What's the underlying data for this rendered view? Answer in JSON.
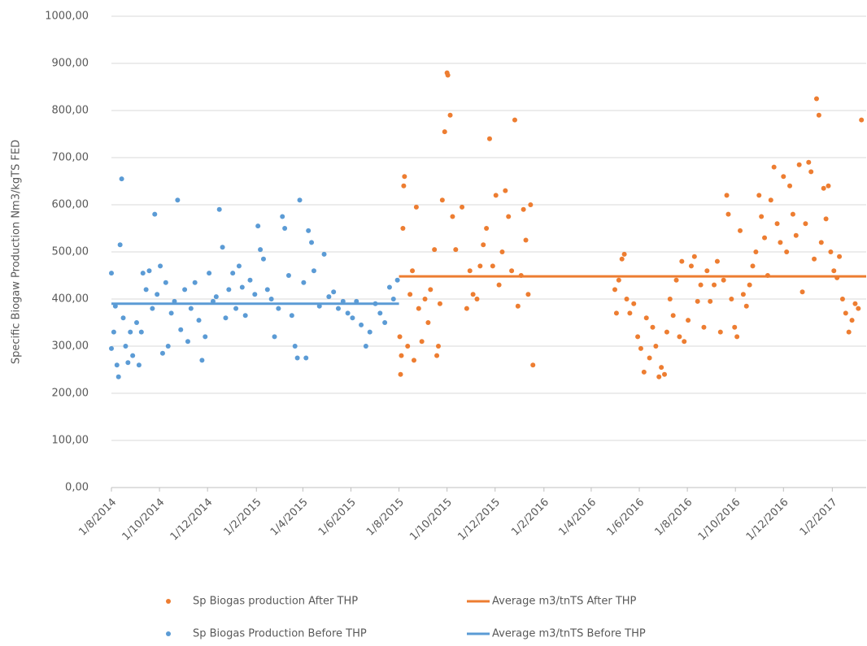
{
  "chart_data": {
    "type": "scatter",
    "y_label": "Specific Biogaw Production Nm3/kgTS  FED",
    "xlim": [
      "2014-08-01",
      "2017-03-16"
    ],
    "xticks": [
      {
        "value": "2014-08-01",
        "label": "1/8/2014"
      },
      {
        "value": "2014-10-01",
        "label": "1/10/2014"
      },
      {
        "value": "2014-12-01",
        "label": "1/12/2014"
      },
      {
        "value": "2015-02-01",
        "label": "1/2/2015"
      },
      {
        "value": "2015-04-01",
        "label": "1/4/2015"
      },
      {
        "value": "2015-06-01",
        "label": "1/6/2015"
      },
      {
        "value": "2015-08-01",
        "label": "1/8/2015"
      },
      {
        "value": "2015-10-01",
        "label": "1/10/2015"
      },
      {
        "value": "2015-12-01",
        "label": "1/12/2015"
      },
      {
        "value": "2016-02-01",
        "label": "1/2/2016"
      },
      {
        "value": "2016-04-01",
        "label": "1/4/2016"
      },
      {
        "value": "2016-06-01",
        "label": "1/6/2016"
      },
      {
        "value": "2016-08-01",
        "label": "1/8/2016"
      },
      {
        "value": "2016-10-01",
        "label": "1/10/2016"
      },
      {
        "value": "2016-12-01",
        "label": "1/12/2016"
      },
      {
        "value": "2017-02-01",
        "label": "1/2/2017"
      }
    ],
    "ylim": [
      0,
      1000
    ],
    "yticks": [
      {
        "value": 0,
        "label": "0,00"
      },
      {
        "value": 100,
        "label": "100,00"
      },
      {
        "value": 200,
        "label": "200,00"
      },
      {
        "value": 300,
        "label": "300,00"
      },
      {
        "value": 400,
        "label": "400,00"
      },
      {
        "value": 500,
        "label": "500,00"
      },
      {
        "value": 600,
        "label": "600,00"
      },
      {
        "value": 700,
        "label": "700,00"
      },
      {
        "value": 800,
        "label": "800,00"
      },
      {
        "value": 900,
        "label": "900,00"
      },
      {
        "value": 1000,
        "label": "1000,00"
      }
    ],
    "grid": true,
    "series": [
      {
        "name": "Sp Biogas production After THP",
        "type": "scatter",
        "color": "#ed7d31",
        "x": [
          "2015-08-02",
          "2015-08-03",
          "2015-08-04",
          "2015-08-06",
          "2015-08-07",
          "2015-08-08",
          "2015-08-12",
          "2015-08-15",
          "2015-08-18",
          "2015-08-20",
          "2015-08-23",
          "2015-08-26",
          "2015-08-30",
          "2015-09-03",
          "2015-09-07",
          "2015-09-10",
          "2015-09-15",
          "2015-09-18",
          "2015-09-20",
          "2015-09-22",
          "2015-09-25",
          "2015-09-28",
          "2015-10-01",
          "2015-10-02",
          "2015-10-05",
          "2015-10-08",
          "2015-10-12",
          "2015-10-20",
          "2015-10-26",
          "2015-10-30",
          "2015-11-03",
          "2015-11-08",
          "2015-11-12",
          "2015-11-16",
          "2015-11-20",
          "2015-11-24",
          "2015-11-28",
          "2015-12-02",
          "2015-12-06",
          "2015-12-10",
          "2015-12-14",
          "2015-12-18",
          "2015-12-22",
          "2015-12-26",
          "2015-12-30",
          "2016-01-03",
          "2016-01-06",
          "2016-01-09",
          "2016-01-12",
          "2016-01-15",
          "2016-01-18",
          "2016-05-01",
          "2016-05-03",
          "2016-05-06",
          "2016-05-10",
          "2016-05-13",
          "2016-05-16",
          "2016-05-20",
          "2016-05-25",
          "2016-05-30",
          "2016-06-03",
          "2016-06-07",
          "2016-06-10",
          "2016-06-14",
          "2016-06-18",
          "2016-06-22",
          "2016-06-26",
          "2016-06-29",
          "2016-07-03",
          "2016-07-06",
          "2016-07-10",
          "2016-07-14",
          "2016-07-18",
          "2016-07-22",
          "2016-07-25",
          "2016-07-28",
          "2016-08-02",
          "2016-08-06",
          "2016-08-10",
          "2016-08-14",
          "2016-08-18",
          "2016-08-22",
          "2016-08-26",
          "2016-08-30",
          "2016-09-04",
          "2016-09-08",
          "2016-09-12",
          "2016-09-16",
          "2016-09-20",
          "2016-09-22",
          "2016-09-26",
          "2016-09-30",
          "2016-10-03",
          "2016-10-07",
          "2016-10-11",
          "2016-10-15",
          "2016-10-19",
          "2016-10-23",
          "2016-10-27",
          "2016-10-31",
          "2016-11-03",
          "2016-11-07",
          "2016-11-11",
          "2016-11-15",
          "2016-11-19",
          "2016-11-23",
          "2016-11-27",
          "2016-12-01",
          "2016-12-05",
          "2016-12-09",
          "2016-12-13",
          "2016-12-17",
          "2016-12-21",
          "2016-12-25",
          "2016-12-29",
          "2017-01-02",
          "2017-01-05",
          "2017-01-09",
          "2017-01-12",
          "2017-01-15",
          "2017-01-18",
          "2017-01-21",
          "2017-01-24",
          "2017-01-27",
          "2017-01-30",
          "2017-02-03",
          "2017-02-07",
          "2017-02-10",
          "2017-02-14",
          "2017-02-18",
          "2017-02-22",
          "2017-02-26",
          "2017-03-02",
          "2017-03-06",
          "2017-03-10"
        ],
        "values": [
          320,
          240,
          280,
          550,
          640,
          660,
          300,
          410,
          460,
          270,
          595,
          380,
          310,
          400,
          350,
          420,
          505,
          280,
          300,
          390,
          610,
          755,
          880,
          875,
          790,
          575,
          505,
          595,
          380,
          460,
          410,
          400,
          470,
          515,
          550,
          740,
          470,
          620,
          430,
          500,
          630,
          575,
          460,
          780,
          385,
          450,
          590,
          525,
          410,
          600,
          260,
          420,
          370,
          440,
          485,
          495,
          400,
          370,
          390,
          320,
          295,
          245,
          360,
          275,
          340,
          300,
          235,
          255,
          240,
          330,
          400,
          365,
          440,
          320,
          480,
          310,
          355,
          470,
          490,
          395,
          430,
          340,
          460,
          395,
          430,
          480,
          330,
          440,
          620,
          580,
          400,
          340,
          320,
          545,
          410,
          385,
          430,
          470,
          500,
          620,
          575,
          530,
          450,
          610,
          680,
          560,
          520,
          660,
          500,
          640,
          580,
          535,
          685,
          415,
          560,
          690,
          670,
          485,
          825,
          790,
          520,
          635,
          570,
          640,
          500,
          460,
          445,
          490,
          400,
          370,
          330,
          355,
          390,
          380,
          780
        ]
      },
      {
        "name": "Average m3/tnTS After THP",
        "type": "line",
        "color": "#ed7d31",
        "x": [
          "2015-08-01",
          "2017-03-16"
        ],
        "values": [
          448,
          448
        ]
      },
      {
        "name": "Sp Biogas Production Before THP",
        "type": "scatter",
        "color": "#5b9bd5",
        "x": [
          "2014-08-01",
          "2014-08-01",
          "2014-08-04",
          "2014-08-06",
          "2014-08-08",
          "2014-08-10",
          "2014-08-12",
          "2014-08-14",
          "2014-08-16",
          "2014-08-19",
          "2014-08-22",
          "2014-08-25",
          "2014-08-28",
          "2014-09-02",
          "2014-09-05",
          "2014-09-08",
          "2014-09-10",
          "2014-09-14",
          "2014-09-18",
          "2014-09-22",
          "2014-09-25",
          "2014-09-28",
          "2014-10-02",
          "2014-10-05",
          "2014-10-09",
          "2014-10-12",
          "2014-10-16",
          "2014-10-20",
          "2014-10-24",
          "2014-10-28",
          "2014-11-02",
          "2014-11-06",
          "2014-11-10",
          "2014-11-15",
          "2014-11-20",
          "2014-11-24",
          "2014-11-28",
          "2014-12-03",
          "2014-12-08",
          "2014-12-12",
          "2014-12-16",
          "2014-12-20",
          "2014-12-24",
          "2014-12-28",
          "2015-01-02",
          "2015-01-06",
          "2015-01-10",
          "2015-01-14",
          "2015-01-18",
          "2015-01-24",
          "2015-01-30",
          "2015-02-03",
          "2015-02-06",
          "2015-02-10",
          "2015-02-15",
          "2015-02-20",
          "2015-02-24",
          "2015-03-01",
          "2015-03-06",
          "2015-03-09",
          "2015-03-14",
          "2015-03-18",
          "2015-03-22",
          "2015-03-25",
          "2015-03-28",
          "2015-04-02",
          "2015-04-05",
          "2015-04-08",
          "2015-04-12",
          "2015-04-15",
          "2015-04-22",
          "2015-04-28",
          "2015-05-04",
          "2015-05-10",
          "2015-05-16",
          "2015-05-22",
          "2015-05-28",
          "2015-06-03",
          "2015-06-08",
          "2015-06-14",
          "2015-06-20",
          "2015-06-25",
          "2015-07-02",
          "2015-07-08",
          "2015-07-14",
          "2015-07-20",
          "2015-07-25",
          "2015-07-30"
        ],
        "values": [
          455,
          295,
          330,
          385,
          260,
          235,
          515,
          655,
          360,
          300,
          265,
          330,
          280,
          350,
          260,
          330,
          455,
          420,
          460,
          380,
          580,
          410,
          470,
          285,
          435,
          300,
          370,
          395,
          610,
          335,
          420,
          310,
          380,
          435,
          355,
          270,
          320,
          455,
          395,
          405,
          590,
          510,
          360,
          420,
          455,
          380,
          470,
          425,
          365,
          440,
          410,
          555,
          505,
          485,
          420,
          400,
          320,
          380,
          575,
          550,
          450,
          365,
          300,
          275,
          610,
          435,
          275,
          545,
          520,
          460,
          385,
          495,
          405,
          415,
          380,
          395,
          370,
          360,
          395,
          345,
          300,
          330,
          390,
          370,
          350,
          425,
          400,
          440
        ]
      },
      {
        "name": "Average m3/tnTS Before THP",
        "type": "line",
        "color": "#5b9bd5",
        "x": [
          "2014-08-01",
          "2015-08-01"
        ],
        "values": [
          390,
          390
        ]
      }
    ]
  }
}
